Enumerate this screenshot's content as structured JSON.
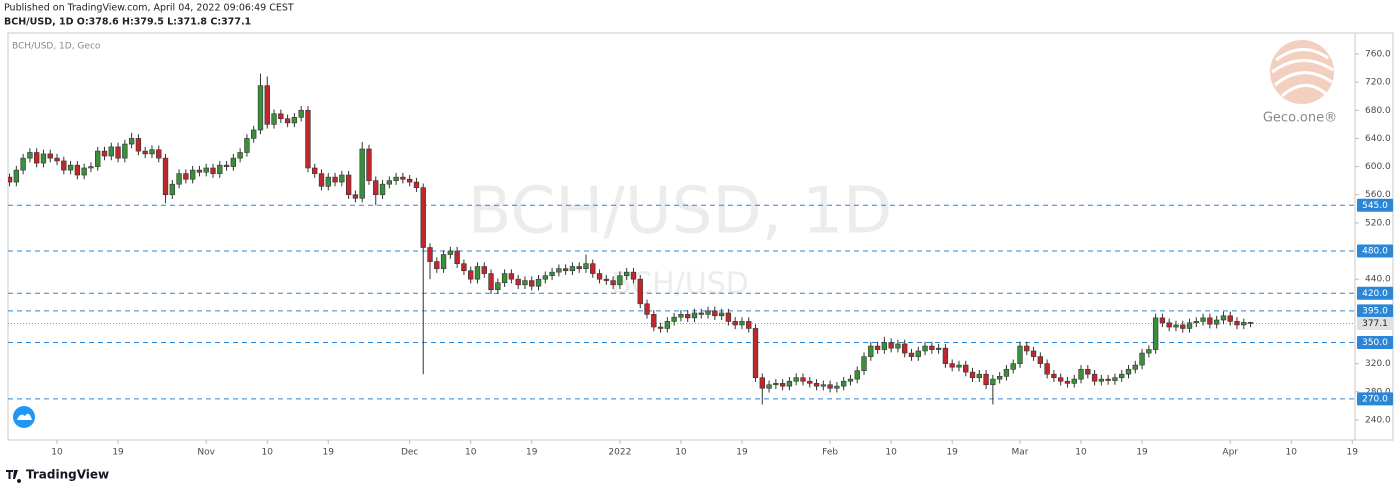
{
  "header": {
    "published": "Published on TradingView.com, April 04, 2022 09:06:49 CEST",
    "symbol_line": "BCH/USD, 1D O:378.6 H:379.5 L:371.8 C:377.1"
  },
  "footer": {
    "brand": "TradingView"
  },
  "chart_data": {
    "type": "candlestick",
    "legend_text": "BCH/USD, 1D, Geco",
    "watermark": "BCH/USD, 1D",
    "watermark_small": "BCH/USD",
    "logo_text": "Geco.one®",
    "up_color": "#3a8f3a",
    "down_color": "#c0272d",
    "level_color": "#2b86d6",
    "xlim": [
      1.77,
      200.4
    ],
    "ylim": [
      211.5,
      789.8
    ],
    "xticks": [
      {
        "value": 9,
        "label": "10"
      },
      {
        "value": 18,
        "label": "19"
      },
      {
        "value": 31,
        "label": "Nov"
      },
      {
        "value": 40,
        "label": "10"
      },
      {
        "value": 49,
        "label": "19"
      },
      {
        "value": 61,
        "label": "Dec"
      },
      {
        "value": 70,
        "label": "10"
      },
      {
        "value": 79,
        "label": "19"
      },
      {
        "value": 92,
        "label": "2022"
      },
      {
        "value": 101,
        "label": "10"
      },
      {
        "value": 110,
        "label": "19"
      },
      {
        "value": 123,
        "label": "Feb"
      },
      {
        "value": 132,
        "label": "10"
      },
      {
        "value": 141,
        "label": "19"
      },
      {
        "value": 151,
        "label": "Mar"
      },
      {
        "value": 160,
        "label": "10"
      },
      {
        "value": 169,
        "label": "19"
      },
      {
        "value": 182,
        "label": "Apr"
      },
      {
        "value": 191,
        "label": "10"
      },
      {
        "value": 200,
        "label": "19"
      }
    ],
    "yticks": [
      {
        "value": 760,
        "label": "760.0"
      },
      {
        "value": 720,
        "label": "720.0"
      },
      {
        "value": 680,
        "label": "680.0"
      },
      {
        "value": 640,
        "label": "640.0"
      },
      {
        "value": 600,
        "label": "600.0"
      },
      {
        "value": 560,
        "label": "560.0"
      },
      {
        "value": 520,
        "label": "520.0"
      },
      {
        "value": 440,
        "label": "440.0"
      },
      {
        "value": 320,
        "label": "320.0"
      },
      {
        "value": 280,
        "label": "280.0"
      },
      {
        "value": 240,
        "label": "240.0"
      }
    ],
    "levels": [
      {
        "value": 545,
        "label": "545.0"
      },
      {
        "value": 480,
        "label": "480.0"
      },
      {
        "value": 420,
        "label": "420.0"
      },
      {
        "value": 395,
        "label": "395.0"
      },
      {
        "value": 350,
        "label": "350.0"
      },
      {
        "value": 270,
        "label": "270.0"
      }
    ],
    "last_price": 377.1,
    "x": [
      1,
      2,
      3,
      4,
      5,
      6,
      7,
      8,
      9,
      10,
      11,
      12,
      13,
      14,
      15,
      16,
      17,
      18,
      19,
      20,
      21,
      22,
      23,
      24,
      25,
      26,
      27,
      28,
      29,
      30,
      31,
      32,
      33,
      34,
      35,
      36,
      37,
      38,
      39,
      40,
      41,
      42,
      43,
      44,
      45,
      46,
      47,
      48,
      49,
      50,
      51,
      52,
      53,
      54,
      55,
      56,
      57,
      58,
      59,
      60,
      61,
      62,
      63,
      64,
      65,
      66,
      67,
      68,
      69,
      70,
      71,
      72,
      73,
      74,
      75,
      76,
      77,
      78,
      79,
      80,
      81,
      82,
      83,
      84,
      85,
      86,
      87,
      88,
      89,
      90,
      91,
      92,
      93,
      94,
      95,
      96,
      97,
      98,
      99,
      100,
      101,
      102,
      103,
      104,
      105,
      106,
      107,
      108,
      109,
      110,
      111,
      112,
      113,
      114,
      115,
      116,
      117,
      118,
      119,
      120,
      121,
      122,
      123,
      124,
      125,
      126,
      127,
      128,
      129,
      130,
      131,
      132,
      133,
      134,
      135,
      136,
      137,
      138,
      139,
      140,
      141,
      142,
      143,
      144,
      145,
      146,
      147,
      148,
      149,
      150,
      151,
      152,
      153,
      154,
      155,
      156,
      157,
      158,
      159,
      160,
      161,
      162,
      163,
      164,
      165,
      166,
      167,
      168,
      169,
      170,
      171,
      172,
      173,
      174,
      175,
      176,
      177,
      178,
      179,
      180,
      181,
      182,
      183,
      184,
      185
    ],
    "ohlc": [
      [
        590,
        598,
        570,
        585
      ],
      [
        585,
        590,
        572,
        578
      ],
      [
        578,
        601,
        572,
        595
      ],
      [
        595,
        618,
        589,
        612
      ],
      [
        612,
        626,
        606,
        620
      ],
      [
        620,
        626,
        599,
        605
      ],
      [
        605,
        624,
        599,
        618
      ],
      [
        618,
        624,
        606,
        612
      ],
      [
        612,
        618,
        602,
        608
      ],
      [
        608,
        614,
        589,
        595
      ],
      [
        595,
        608,
        589,
        602
      ],
      [
        602,
        608,
        582,
        588
      ],
      [
        588,
        604,
        582,
        598
      ],
      [
        598,
        606,
        592,
        600
      ],
      [
        600,
        628,
        594,
        622
      ],
      [
        622,
        628,
        609,
        615
      ],
      [
        615,
        634,
        609,
        628
      ],
      [
        628,
        634,
        606,
        612
      ],
      [
        612,
        638,
        606,
        632
      ],
      [
        632,
        648,
        626,
        640
      ],
      [
        640,
        646,
        616,
        622
      ],
      [
        622,
        628,
        612,
        618
      ],
      [
        618,
        630,
        612,
        624
      ],
      [
        624,
        630,
        606,
        612
      ],
      [
        612,
        618,
        548,
        560
      ],
      [
        560,
        581,
        554,
        575
      ],
      [
        575,
        596,
        569,
        590
      ],
      [
        590,
        596,
        576,
        582
      ],
      [
        582,
        601,
        576,
        595
      ],
      [
        595,
        601,
        586,
        592
      ],
      [
        592,
        604,
        586,
        598
      ],
      [
        598,
        604,
        584,
        590
      ],
      [
        590,
        608,
        584,
        602
      ],
      [
        602,
        608,
        594,
        600
      ],
      [
        600,
        618,
        594,
        612
      ],
      [
        612,
        626,
        606,
        620
      ],
      [
        620,
        646,
        614,
        640
      ],
      [
        640,
        658,
        634,
        652
      ],
      [
        652,
        732,
        646,
        715
      ],
      [
        715,
        728,
        654,
        660
      ],
      [
        660,
        681,
        654,
        675
      ],
      [
        675,
        681,
        662,
        668
      ],
      [
        668,
        674,
        656,
        662
      ],
      [
        662,
        676,
        656,
        670
      ],
      [
        670,
        686,
        664,
        680
      ],
      [
        680,
        686,
        592,
        598
      ],
      [
        598,
        604,
        584,
        590
      ],
      [
        590,
        596,
        566,
        572
      ],
      [
        572,
        591,
        566,
        585
      ],
      [
        585,
        591,
        572,
        578
      ],
      [
        578,
        594,
        572,
        588
      ],
      [
        588,
        594,
        554,
        560
      ],
      [
        560,
        566,
        549,
        555
      ],
      [
        555,
        635,
        549,
        625
      ],
      [
        625,
        631,
        574,
        580
      ],
      [
        580,
        586,
        545,
        560
      ],
      [
        560,
        581,
        554,
        575
      ],
      [
        575,
        586,
        569,
        580
      ],
      [
        580,
        591,
        574,
        585
      ],
      [
        585,
        591,
        576,
        582
      ],
      [
        582,
        588,
        572,
        578
      ],
      [
        578,
        584,
        564,
        570
      ],
      [
        570,
        576,
        305,
        485
      ],
      [
        485,
        491,
        440,
        465
      ],
      [
        465,
        471,
        449,
        455
      ],
      [
        455,
        481,
        449,
        475
      ],
      [
        475,
        486,
        469,
        480
      ],
      [
        480,
        486,
        456,
        462
      ],
      [
        462,
        468,
        446,
        452
      ],
      [
        452,
        458,
        434,
        440
      ],
      [
        440,
        464,
        434,
        458
      ],
      [
        458,
        464,
        442,
        448
      ],
      [
        448,
        454,
        419,
        425
      ],
      [
        425,
        441,
        419,
        435
      ],
      [
        435,
        454,
        429,
        448
      ],
      [
        448,
        454,
        434,
        440
      ],
      [
        440,
        446,
        426,
        432
      ],
      [
        432,
        444,
        426,
        438
      ],
      [
        438,
        444,
        424,
        430
      ],
      [
        430,
        446,
        424,
        440
      ],
      [
        440,
        451,
        434,
        445
      ],
      [
        445,
        456,
        439,
        450
      ],
      [
        450,
        461,
        444,
        455
      ],
      [
        455,
        461,
        446,
        452
      ],
      [
        452,
        464,
        446,
        458
      ],
      [
        458,
        464,
        449,
        455
      ],
      [
        455,
        475,
        449,
        462
      ],
      [
        462,
        468,
        442,
        448
      ],
      [
        448,
        454,
        434,
        440
      ],
      [
        440,
        446,
        432,
        438
      ],
      [
        438,
        444,
        426,
        432
      ],
      [
        432,
        451,
        426,
        445
      ],
      [
        445,
        456,
        439,
        450
      ],
      [
        450,
        456,
        434,
        440
      ],
      [
        440,
        446,
        399,
        405
      ],
      [
        405,
        411,
        384,
        390
      ],
      [
        390,
        396,
        366,
        372
      ],
      [
        372,
        378,
        364,
        370
      ],
      [
        370,
        386,
        364,
        380
      ],
      [
        380,
        392,
        374,
        386
      ],
      [
        386,
        396,
        380,
        390
      ],
      [
        390,
        396,
        379,
        385
      ],
      [
        385,
        398,
        379,
        392
      ],
      [
        392,
        398,
        384,
        390
      ],
      [
        390,
        401,
        384,
        395
      ],
      [
        395,
        401,
        382,
        388
      ],
      [
        388,
        398,
        382,
        392
      ],
      [
        392,
        398,
        374,
        380
      ],
      [
        380,
        386,
        369,
        375
      ],
      [
        375,
        386,
        369,
        380
      ],
      [
        380,
        386,
        364,
        370
      ],
      [
        370,
        376,
        294,
        300
      ],
      [
        300,
        306,
        262,
        285
      ],
      [
        285,
        296,
        279,
        290
      ],
      [
        290,
        298,
        284,
        292
      ],
      [
        292,
        298,
        282,
        288
      ],
      [
        288,
        301,
        282,
        295
      ],
      [
        295,
        306,
        289,
        300
      ],
      [
        300,
        306,
        289,
        295
      ],
      [
        295,
        301,
        286,
        292
      ],
      [
        292,
        298,
        282,
        288
      ],
      [
        288,
        296,
        282,
        290
      ],
      [
        290,
        296,
        279,
        285
      ],
      [
        285,
        294,
        279,
        288
      ],
      [
        288,
        301,
        282,
        295
      ],
      [
        295,
        304,
        289,
        298
      ],
      [
        298,
        316,
        292,
        310
      ],
      [
        310,
        336,
        304,
        330
      ],
      [
        330,
        351,
        324,
        345
      ],
      [
        345,
        351,
        334,
        340
      ],
      [
        340,
        358,
        334,
        350
      ],
      [
        350,
        356,
        336,
        342
      ],
      [
        342,
        354,
        336,
        348
      ],
      [
        348,
        354,
        329,
        335
      ],
      [
        335,
        341,
        324,
        330
      ],
      [
        330,
        344,
        324,
        338
      ],
      [
        338,
        351,
        332,
        345
      ],
      [
        345,
        351,
        334,
        340
      ],
      [
        340,
        348,
        334,
        342
      ],
      [
        342,
        348,
        314,
        320
      ],
      [
        320,
        326,
        309,
        315
      ],
      [
        315,
        324,
        309,
        318
      ],
      [
        318,
        324,
        302,
        308
      ],
      [
        308,
        314,
        294,
        300
      ],
      [
        300,
        311,
        294,
        305
      ],
      [
        305,
        311,
        284,
        290
      ],
      [
        290,
        304,
        262,
        298
      ],
      [
        298,
        308,
        292,
        302
      ],
      [
        302,
        318,
        296,
        312
      ],
      [
        312,
        326,
        306,
        320
      ],
      [
        320,
        351,
        314,
        345
      ],
      [
        345,
        351,
        332,
        338
      ],
      [
        338,
        344,
        324,
        330
      ],
      [
        330,
        336,
        314,
        320
      ],
      [
        320,
        326,
        299,
        305
      ],
      [
        305,
        311,
        294,
        300
      ],
      [
        300,
        306,
        289,
        295
      ],
      [
        295,
        301,
        286,
        292
      ],
      [
        292,
        304,
        286,
        298
      ],
      [
        298,
        318,
        292,
        312
      ],
      [
        312,
        318,
        299,
        305
      ],
      [
        305,
        311,
        289,
        295
      ],
      [
        295,
        304,
        289,
        298
      ],
      [
        298,
        304,
        290,
        296
      ],
      [
        296,
        306,
        290,
        300
      ],
      [
        300,
        311,
        294,
        305
      ],
      [
        305,
        318,
        299,
        312
      ],
      [
        312,
        324,
        306,
        318
      ],
      [
        318,
        341,
        312,
        335
      ],
      [
        335,
        346,
        329,
        340
      ],
      [
        340,
        391,
        334,
        385
      ],
      [
        385,
        391,
        372,
        378
      ],
      [
        378,
        384,
        366,
        372
      ],
      [
        372,
        381,
        366,
        375
      ],
      [
        375,
        381,
        364,
        370
      ],
      [
        370,
        384,
        364,
        378
      ],
      [
        378,
        386,
        372,
        380
      ],
      [
        380,
        391,
        374,
        385
      ],
      [
        385,
        391,
        370,
        376
      ],
      [
        376,
        388,
        370,
        382
      ],
      [
        382,
        394,
        376,
        388
      ],
      [
        388,
        394,
        374,
        380
      ],
      [
        380,
        386,
        369,
        375
      ],
      [
        375,
        384,
        369,
        378.6
      ],
      [
        378.6,
        379.5,
        371.8,
        377.1
      ]
    ]
  }
}
